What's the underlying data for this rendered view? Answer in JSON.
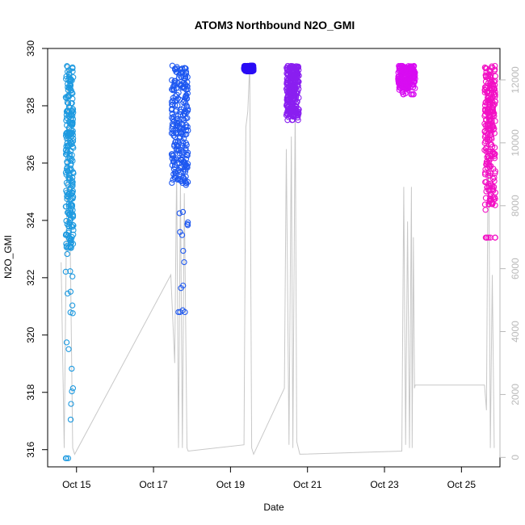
{
  "chart_data": {
    "type": "scatter",
    "title": "ATOM3 Northbound N2O_GMI",
    "xlabel": "Date",
    "ylabel": "N2O_GMI",
    "x_axis": {
      "ticks": [
        {
          "label": "Oct 15",
          "day": 15
        },
        {
          "label": "Oct 17",
          "day": 17
        },
        {
          "label": "Oct 19",
          "day": 19
        },
        {
          "label": "Oct 21",
          "day": 21
        },
        {
          "label": "Oct 23",
          "day": 23
        },
        {
          "label": "Oct 25",
          "day": 25
        }
      ],
      "range_days": [
        14.25,
        26.0
      ]
    },
    "y_left": {
      "lim": [
        315.4,
        330.0
      ],
      "ticks": [
        316,
        318,
        320,
        322,
        324,
        326,
        328,
        330
      ]
    },
    "y_right": {
      "lim": [
        -300,
        13000
      ],
      "ticks": [
        0,
        2000,
        4000,
        6000,
        8000,
        10000,
        12000
      ],
      "color": "#b9b9b9"
    },
    "grid": false,
    "series": [
      {
        "color": "#1e9ae0",
        "day_start": 14.72,
        "day_end": 14.92,
        "n2o_min": 315.7,
        "n2o_max": 329.4,
        "n2o_typical": [
          323.0,
          329.4
        ]
      },
      {
        "color": "#1e58f0",
        "day_start": 17.47,
        "day_end": 17.9,
        "n2o_min": 320.8,
        "n2o_max": 329.4,
        "n2o_typical": [
          325.3,
          329.4
        ]
      },
      {
        "color": "#2a0cf5",
        "day_start": 19.35,
        "day_end": 19.6,
        "n2o_min": 329.2,
        "n2o_max": 329.4,
        "n2o_typical": [
          329.2,
          329.4
        ]
      },
      {
        "color": "#8a1ff0",
        "day_start": 20.45,
        "day_end": 20.78,
        "n2o_min": 327.5,
        "n2o_max": 329.4,
        "n2o_typical": [
          327.6,
          329.4
        ]
      },
      {
        "color": "#d80cf2",
        "day_start": 23.35,
        "day_end": 23.8,
        "n2o_min": 328.4,
        "n2o_max": 329.4,
        "n2o_typical": [
          328.6,
          329.4
        ]
      },
      {
        "color": "#f210c4",
        "day_start": 25.6,
        "day_end": 25.88,
        "n2o_min": 323.4,
        "n2o_max": 329.4,
        "n2o_typical": [
          324.5,
          329.4
        ]
      }
    ],
    "altitude_trace": {
      "color": "#c8c8c8",
      "points": [
        [
          14.6,
          6200
        ],
        [
          14.68,
          300
        ],
        [
          14.78,
          12500
        ],
        [
          14.9,
          300
        ],
        [
          14.95,
          100
        ],
        [
          17.45,
          5800
        ],
        [
          17.55,
          3000
        ],
        [
          17.6,
          9200
        ],
        [
          17.65,
          300
        ],
        [
          17.7,
          8800
        ],
        [
          17.75,
          300
        ],
        [
          17.8,
          8400
        ],
        [
          17.87,
          300
        ],
        [
          17.9,
          200
        ],
        [
          19.35,
          400
        ],
        [
          19.4,
          10500
        ],
        [
          19.45,
          11000
        ],
        [
          19.5,
          12500
        ],
        [
          19.55,
          300
        ],
        [
          19.6,
          100
        ],
        [
          20.4,
          2200
        ],
        [
          20.45,
          9800
        ],
        [
          20.52,
          400
        ],
        [
          20.58,
          10200
        ],
        [
          20.62,
          300
        ],
        [
          20.68,
          11300
        ],
        [
          20.72,
          500
        ],
        [
          20.8,
          100
        ],
        [
          23.45,
          200
        ],
        [
          23.5,
          8600
        ],
        [
          23.55,
          400
        ],
        [
          23.6,
          7500
        ],
        [
          23.65,
          300
        ],
        [
          23.7,
          8600
        ],
        [
          23.72,
          300
        ],
        [
          23.75,
          7000
        ],
        [
          23.78,
          2200
        ],
        [
          23.8,
          2300
        ],
        [
          25.6,
          2300
        ],
        [
          25.65,
          1500
        ],
        [
          25.7,
          11200
        ],
        [
          25.75,
          300
        ],
        [
          25.8,
          5800
        ],
        [
          25.85,
          300
        ]
      ]
    }
  }
}
